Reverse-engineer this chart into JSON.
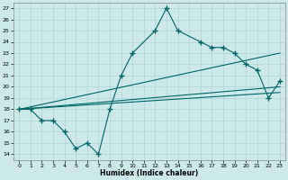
{
  "xlabel": "Humidex (Indice chaleur)",
  "bg_color": "#cce8e8",
  "grid_color": "#b0d4d4",
  "line_color": "#006666",
  "xlim": [
    -0.5,
    23.5
  ],
  "ylim": [
    13.5,
    27.5
  ],
  "xticks": [
    0,
    1,
    2,
    3,
    4,
    5,
    6,
    7,
    8,
    9,
    10,
    11,
    12,
    13,
    14,
    15,
    16,
    17,
    18,
    19,
    20,
    21,
    22,
    23
  ],
  "yticks": [
    14,
    15,
    16,
    17,
    18,
    19,
    20,
    21,
    22,
    23,
    24,
    25,
    26,
    27
  ],
  "main_x": [
    0,
    1,
    2,
    3,
    4,
    5,
    6,
    7,
    8,
    9,
    10,
    12,
    13,
    14,
    16,
    17,
    18,
    19,
    20,
    21,
    22,
    23
  ],
  "main_y": [
    18,
    18,
    17,
    17,
    16,
    14.5,
    15,
    14,
    18,
    21,
    23,
    25,
    27,
    25,
    24,
    23.5,
    23.5,
    23,
    22,
    21.5,
    19,
    20.5
  ],
  "line1_x": [
    0,
    23
  ],
  "line1_y": [
    18,
    23
  ],
  "line2_x": [
    0,
    23
  ],
  "line2_y": [
    18,
    20
  ],
  "line3_x": [
    0,
    23
  ],
  "line3_y": [
    18,
    19.5
  ]
}
